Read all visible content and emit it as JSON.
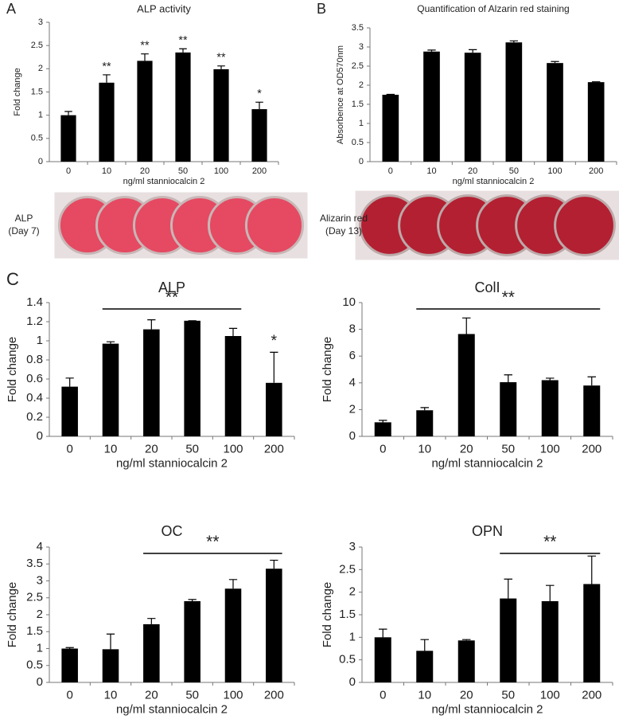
{
  "chart_data": [
    {
      "type": "bar",
      "panel": "A",
      "title": "ALP activity",
      "xlabel": "ng/ml stanniocalcin 2",
      "ylabel": "Fold change",
      "color": "#000000",
      "categories": [
        "0",
        "10",
        "20",
        "50",
        "100",
        "200"
      ],
      "values": [
        1.0,
        1.7,
        2.17,
        2.35,
        1.99,
        1.13
      ],
      "errors": [
        0.08,
        0.17,
        0.15,
        0.08,
        0.07,
        0.15
      ],
      "ylim": [
        0,
        3
      ],
      "yticks": [
        0,
        0.5,
        1,
        1.5,
        2,
        2.5,
        3
      ],
      "annotations": [
        {
          "text": "**",
          "at": "10"
        },
        {
          "text": "**",
          "at": "20"
        },
        {
          "text": "**",
          "at": "50"
        },
        {
          "text": "**",
          "at": "100"
        },
        {
          "text": "*",
          "at": "200"
        }
      ],
      "image_label": [
        "ALP",
        "(Day 7)"
      ]
    },
    {
      "type": "bar",
      "panel": "B",
      "title": "Quantification of Alzarin red staining",
      "xlabel": "ng/ml stanniocalcin 2",
      "ylabel": "Absorbence at OD570nm",
      "color": "#000000",
      "categories": [
        "0",
        "10",
        "20",
        "50",
        "100",
        "200"
      ],
      "values": [
        1.75,
        2.88,
        2.85,
        3.12,
        2.58,
        2.08
      ],
      "errors": [
        0.01,
        0.04,
        0.08,
        0.04,
        0.04,
        0.01
      ],
      "ylim": [
        0,
        3.5
      ],
      "yticks": [
        0,
        0.5,
        1,
        1.5,
        2,
        2.5,
        3,
        3.5
      ],
      "image_label": [
        "Alizarin red",
        "(Day 13)"
      ]
    },
    {
      "type": "bar",
      "panel": "C",
      "title": "ALP",
      "xlabel": "ng/ml stanniocalcin 2",
      "ylabel": "Fold change",
      "color": "#000000",
      "categories": [
        "0",
        "10",
        "20",
        "50",
        "100",
        "200"
      ],
      "values": [
        0.52,
        0.97,
        1.12,
        1.21,
        1.05,
        0.56
      ],
      "errors": [
        0.09,
        0.02,
        0.1,
        0.0,
        0.08,
        0.32
      ],
      "ylim": [
        0,
        1.4
      ],
      "yticks": [
        0,
        0.2,
        0.4,
        0.6,
        0.8,
        1,
        1.2,
        1.4
      ],
      "annotations": [
        {
          "text": "**",
          "from": "10",
          "to": "100"
        },
        {
          "text": "*",
          "at": "200"
        }
      ]
    },
    {
      "type": "bar",
      "title": "ColI",
      "xlabel": "ng/ml  stanniocalcin 2",
      "ylabel": "Fold change",
      "color": "#000000",
      "categories": [
        "0",
        "10",
        "20",
        "50",
        "100",
        "200"
      ],
      "values": [
        1.05,
        1.95,
        7.65,
        4.05,
        4.2,
        3.8
      ],
      "errors": [
        0.15,
        0.2,
        1.2,
        0.55,
        0.15,
        0.65
      ],
      "ylim": [
        0,
        10
      ],
      "yticks": [
        0,
        2,
        4,
        6,
        8,
        10
      ],
      "annotations": [
        {
          "text": "**",
          "from": "10",
          "to": "200"
        }
      ]
    },
    {
      "type": "bar",
      "title": "OC",
      "xlabel": "ng/ml stanniocalcin 2",
      "ylabel": "Fold change",
      "color": "#000000",
      "categories": [
        "0",
        "10",
        "20",
        "50",
        "100",
        "200"
      ],
      "values": [
        1.0,
        0.98,
        1.72,
        2.4,
        2.77,
        3.36
      ],
      "errors": [
        0.03,
        0.45,
        0.17,
        0.05,
        0.27,
        0.25
      ],
      "ylim": [
        0,
        4
      ],
      "yticks": [
        0,
        0.5,
        1,
        1.5,
        2,
        2.5,
        3,
        3.5,
        4
      ],
      "annotations": [
        {
          "text": "**",
          "from": "20",
          "to": "200"
        }
      ]
    },
    {
      "type": "bar",
      "title": "OPN",
      "xlabel": "ng/ml stanniocalcin 2",
      "ylabel": "Fold change",
      "color": "#000000",
      "categories": [
        "0",
        "10",
        "20",
        "50",
        "100",
        "200"
      ],
      "values": [
        1.0,
        0.7,
        0.93,
        1.86,
        1.8,
        2.18
      ],
      "errors": [
        0.18,
        0.25,
        0.02,
        0.43,
        0.35,
        0.62
      ],
      "ylim": [
        0,
        3
      ],
      "yticks": [
        0,
        0.5,
        1,
        1.5,
        2,
        2.5,
        3
      ],
      "annotations": [
        {
          "text": "**",
          "from": "50",
          "to": "200"
        }
      ]
    }
  ]
}
